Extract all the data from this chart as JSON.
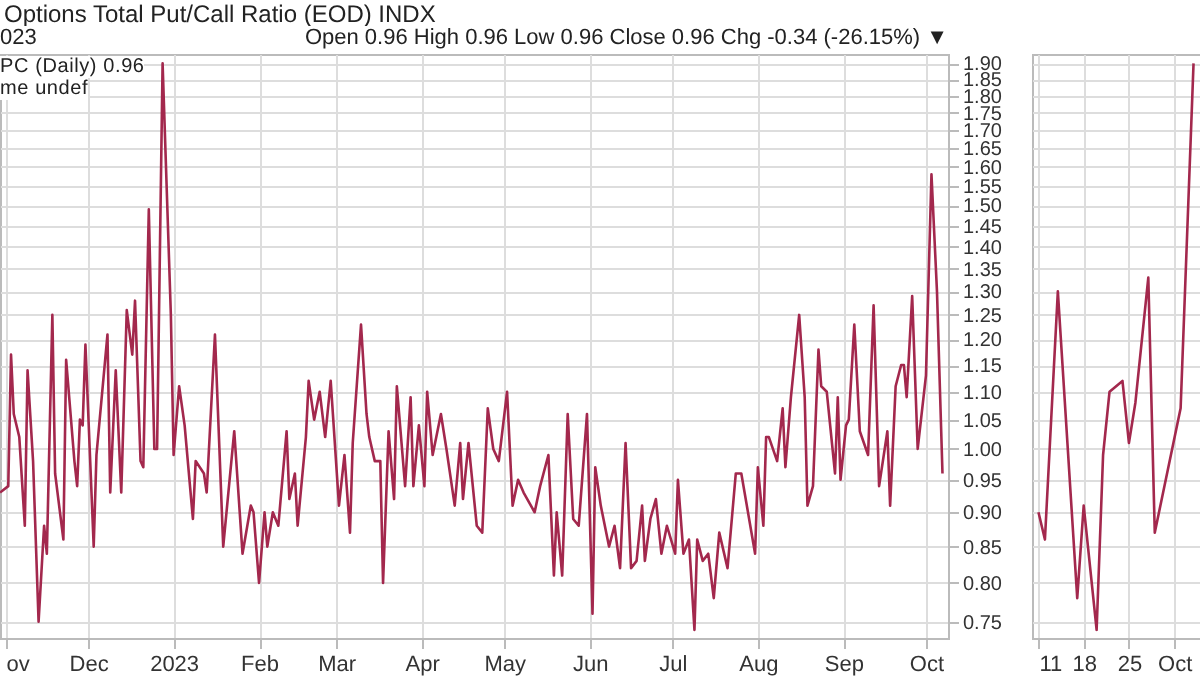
{
  "chart_data": [
    {
      "type": "line",
      "title": "Options Total Put/Call Ratio (EOD) INDX",
      "subtitle": "023",
      "annotations": [
        "Open 0.96 High 0.96 Low 0.96 Close 0.96 Chg -0.34 (-26.15%) ▼",
        "PC (Daily) 0.96",
        "me undef"
      ],
      "x": [
        "2022-10-30",
        "2022-11-02",
        "2022-11-03",
        "2022-11-04",
        "2022-11-06",
        "2022-11-08",
        "2022-11-09",
        "2022-11-11",
        "2022-11-13",
        "2022-11-15",
        "2022-11-16",
        "2022-11-18",
        "2022-11-19",
        "2022-11-22",
        "2022-11-23",
        "2022-11-26",
        "2022-11-27",
        "2022-11-28",
        "2022-11-29",
        "2022-11-30",
        "2022-12-03",
        "2022-12-04",
        "2022-12-08",
        "2022-12-09",
        "2022-12-11",
        "2022-12-13",
        "2022-12-15",
        "2022-12-17",
        "2022-12-18",
        "2022-12-20",
        "2022-12-21",
        "2022-12-23",
        "2022-12-25",
        "2022-12-26",
        "2022-12-28",
        "2022-12-31",
        "2023-01-01",
        "2023-01-03",
        "2023-01-05",
        "2023-01-08",
        "2023-01-09",
        "2023-01-12",
        "2023-01-13",
        "2023-01-16",
        "2023-01-19",
        "2023-01-23",
        "2023-01-26",
        "2023-01-29",
        "2023-01-30",
        "2023-02-01",
        "2023-02-03",
        "2023-02-04",
        "2023-02-06",
        "2023-02-08",
        "2023-02-11",
        "2023-02-12",
        "2023-02-14",
        "2023-02-15",
        "2023-02-18",
        "2023-02-19",
        "2023-02-21",
        "2023-02-23",
        "2023-02-25",
        "2023-02-27",
        "2023-03-02",
        "2023-03-04",
        "2023-03-06",
        "2023-03-07",
        "2023-03-10",
        "2023-03-12",
        "2023-03-13",
        "2023-03-15",
        "2023-03-17",
        "2023-03-18",
        "2023-03-20",
        "2023-03-22",
        "2023-03-23",
        "2023-03-26",
        "2023-03-28",
        "2023-03-29",
        "2023-03-31",
        "2023-04-02",
        "2023-04-03",
        "2023-04-05",
        "2023-04-08",
        "2023-04-10",
        "2023-04-13",
        "2023-04-15",
        "2023-04-16",
        "2023-04-18",
        "2023-04-21",
        "2023-04-23",
        "2023-04-25",
        "2023-04-27",
        "2023-04-29",
        "2023-05-02",
        "2023-05-04",
        "2023-05-06",
        "2023-05-08",
        "2023-05-12",
        "2023-05-14",
        "2023-05-17",
        "2023-05-19",
        "2023-05-20",
        "2023-05-22",
        "2023-05-24",
        "2023-05-26",
        "2023-05-28",
        "2023-05-31",
        "2023-06-02",
        "2023-06-03",
        "2023-06-05",
        "2023-06-08",
        "2023-06-10",
        "2023-06-12",
        "2023-06-14",
        "2023-06-16",
        "2023-06-18",
        "2023-06-20",
        "2023-06-21",
        "2023-06-23",
        "2023-06-25",
        "2023-06-27",
        "2023-06-29",
        "2023-07-02",
        "2023-07-03",
        "2023-07-05",
        "2023-07-07",
        "2023-07-09",
        "2023-07-10",
        "2023-07-12",
        "2023-07-14",
        "2023-07-16",
        "2023-07-18",
        "2023-07-21",
        "2023-07-24",
        "2023-07-26",
        "2023-07-31",
        "2023-08-01",
        "2023-08-03",
        "2023-08-04",
        "2023-08-05",
        "2023-08-08",
        "2023-08-10",
        "2023-08-11",
        "2023-08-13",
        "2023-08-16",
        "2023-08-18",
        "2023-08-19",
        "2023-08-21",
        "2023-08-23",
        "2023-08-24",
        "2023-08-26",
        "2023-08-29",
        "2023-08-30",
        "2023-08-31",
        "2023-09-02",
        "2023-09-03",
        "2023-09-05",
        "2023-09-07",
        "2023-09-10",
        "2023-09-12",
        "2023-09-14",
        "2023-09-17",
        "2023-09-18",
        "2023-09-20",
        "2023-09-22",
        "2023-09-23",
        "2023-09-24",
        "2023-09-26",
        "2023-09-28",
        "2023-10-01",
        "2023-10-03",
        "2023-10-05",
        "2023-10-07"
      ],
      "series": [
        {
          "color": "#a3284d",
          "values": [
            0.93,
            0.94,
            1.17,
            1.06,
            1.02,
            0.88,
            1.14,
            0.98,
            0.75,
            0.88,
            0.84,
            1.25,
            0.96,
            0.86,
            1.16,
            0.98,
            0.94,
            1.05,
            1.04,
            1.19,
            0.85,
            0.99,
            1.21,
            0.93,
            1.14,
            0.93,
            1.26,
            1.17,
            1.28,
            0.98,
            0.97,
            1.49,
            1.0,
            1.0,
            1.9,
            1.25,
            0.99,
            1.11,
            1.04,
            0.89,
            0.98,
            0.96,
            0.93,
            1.21,
            0.85,
            1.03,
            0.84,
            0.91,
            0.9,
            0.8,
            0.9,
            0.85,
            0.9,
            0.88,
            1.03,
            0.92,
            0.96,
            0.88,
            1.02,
            1.12,
            1.05,
            1.1,
            1.02,
            1.12,
            0.91,
            0.99,
            0.87,
            1.01,
            1.23,
            1.06,
            1.02,
            0.98,
            0.98,
            0.8,
            1.03,
            0.92,
            1.11,
            0.94,
            1.09,
            0.94,
            1.04,
            0.94,
            1.1,
            0.99,
            1.06,
            1.0,
            0.91,
            1.01,
            0.92,
            1.01,
            0.88,
            0.87,
            1.07,
            1.0,
            0.98,
            1.1,
            0.91,
            0.95,
            0.93,
            0.9,
            0.94,
            0.99,
            0.81,
            0.9,
            0.81,
            1.06,
            0.89,
            0.88,
            1.06,
            0.76,
            0.97,
            0.91,
            0.85,
            0.88,
            0.82,
            1.01,
            0.82,
            0.83,
            0.91,
            0.83,
            0.89,
            0.92,
            0.84,
            0.88,
            0.84,
            0.95,
            0.84,
            0.86,
            0.74,
            0.86,
            0.83,
            0.84,
            0.78,
            0.87,
            0.82,
            0.96,
            0.96,
            0.84,
            0.97,
            0.88,
            1.02,
            1.02,
            0.98,
            1.07,
            0.97,
            1.09,
            1.25,
            1.09,
            0.91,
            0.94,
            1.18,
            1.11,
            1.1,
            0.96,
            1.09,
            0.95,
            1.04,
            1.05,
            1.23,
            1.03,
            0.99,
            1.27,
            0.94,
            1.03,
            0.91,
            1.11,
            1.15,
            1.15,
            1.09,
            1.29,
            1.0,
            1.13,
            1.58,
            1.3,
            0.96
          ]
        }
      ],
      "xlim": [
        "2022-10-30",
        "2023-10-09"
      ],
      "xticks": [
        {
          "value": "2022-11-01",
          "label": "ov"
        },
        {
          "value": "2022-12-01",
          "label": "Dec"
        },
        {
          "value": "2023-01-01",
          "label": "2023"
        },
        {
          "value": "2023-02-01",
          "label": "Feb"
        },
        {
          "value": "2023-03-01",
          "label": "Mar"
        },
        {
          "value": "2023-04-01",
          "label": "Apr"
        },
        {
          "value": "2023-05-01",
          "label": "May"
        },
        {
          "value": "2023-06-01",
          "label": "Jun"
        },
        {
          "value": "2023-07-01",
          "label": "Jul"
        },
        {
          "value": "2023-08-01",
          "label": "Aug"
        },
        {
          "value": "2023-09-01",
          "label": "Sep"
        },
        {
          "value": "2023-10-01",
          "label": "Oct"
        }
      ],
      "ylim": [
        0.73,
        1.93
      ],
      "log": "y",
      "yticks": [
        {
          "value": 0.75,
          "label": "0.75"
        },
        {
          "value": 0.8,
          "label": "0.80"
        },
        {
          "value": 0.85,
          "label": "0.85"
        },
        {
          "value": 0.9,
          "label": "0.90"
        },
        {
          "value": 0.95,
          "label": "0.95"
        },
        {
          "value": 1.0,
          "label": "1.00"
        },
        {
          "value": 1.05,
          "label": "1.05"
        },
        {
          "value": 1.1,
          "label": "1.10"
        },
        {
          "value": 1.15,
          "label": "1.15"
        },
        {
          "value": 1.2,
          "label": "1.20"
        },
        {
          "value": 1.25,
          "label": "1.25"
        },
        {
          "value": 1.3,
          "label": "1.30"
        },
        {
          "value": 1.35,
          "label": "1.35"
        },
        {
          "value": 1.4,
          "label": "1.40"
        },
        {
          "value": 1.45,
          "label": "1.45"
        },
        {
          "value": 1.5,
          "label": "1.50"
        },
        {
          "value": 1.55,
          "label": "1.55"
        },
        {
          "value": 1.6,
          "label": "1.60"
        },
        {
          "value": 1.65,
          "label": "1.65"
        },
        {
          "value": 1.7,
          "label": "1.70"
        },
        {
          "value": 1.75,
          "label": "1.75"
        },
        {
          "value": 1.8,
          "label": "1.80"
        },
        {
          "value": 1.85,
          "label": "1.85"
        },
        {
          "value": 1.9,
          "label": "1.90"
        }
      ],
      "grid": true,
      "marker": "none",
      "line_style": "solid"
    },
    {
      "type": "line",
      "x": [
        "--09-11",
        "--09-12",
        "--09-14",
        "--09-17",
        "--09-18",
        "--09-20",
        "--09-21",
        "--09-22",
        "--09-24",
        "--09-25",
        "--09-26",
        "--09-28",
        "--09-29",
        "--10-03",
        "--10-05"
      ],
      "series": [
        {
          "color": "#a3284d",
          "values": [
            0.9,
            0.86,
            1.3,
            0.78,
            0.91,
            0.74,
            0.99,
            1.1,
            1.12,
            1.01,
            1.08,
            1.33,
            0.87,
            1.07,
            1.9
          ]
        }
      ],
      "xlim": [
        "--09-10",
        "--10-06"
      ],
      "xticks": [
        {
          "value": "--09-11",
          "label": "11"
        },
        {
          "value": "--09-18",
          "label": "18"
        },
        {
          "value": "--09-25",
          "label": "25"
        },
        {
          "value": "--10-02",
          "label": "Oct"
        }
      ],
      "ylim": [
        0.73,
        1.93
      ],
      "log": "y",
      "yticks": [
        {
          "value": 0.75,
          "label": null
        },
        {
          "value": 0.8,
          "label": null
        },
        {
          "value": 0.85,
          "label": null
        },
        {
          "value": 0.9,
          "label": null
        },
        {
          "value": 0.95,
          "label": null
        },
        {
          "value": 1.0,
          "label": null
        },
        {
          "value": 1.05,
          "label": null
        },
        {
          "value": 1.1,
          "label": null
        },
        {
          "value": 1.15,
          "label": null
        },
        {
          "value": 1.2,
          "label": null
        },
        {
          "value": 1.25,
          "label": null
        },
        {
          "value": 1.3,
          "label": null
        },
        {
          "value": 1.35,
          "label": null
        },
        {
          "value": 1.4,
          "label": null
        },
        {
          "value": 1.45,
          "label": null
        },
        {
          "value": 1.5,
          "label": null
        },
        {
          "value": 1.55,
          "label": null
        },
        {
          "value": 1.6,
          "label": null
        },
        {
          "value": 1.65,
          "label": null
        },
        {
          "value": 1.7,
          "label": null
        },
        {
          "value": 1.75,
          "label": null
        },
        {
          "value": 1.8,
          "label": null
        },
        {
          "value": 1.85,
          "label": null
        },
        {
          "value": 1.9,
          "label": null
        }
      ],
      "tick_labels": "x",
      "grid": true,
      "marker": "none",
      "line_style": "solid"
    }
  ]
}
